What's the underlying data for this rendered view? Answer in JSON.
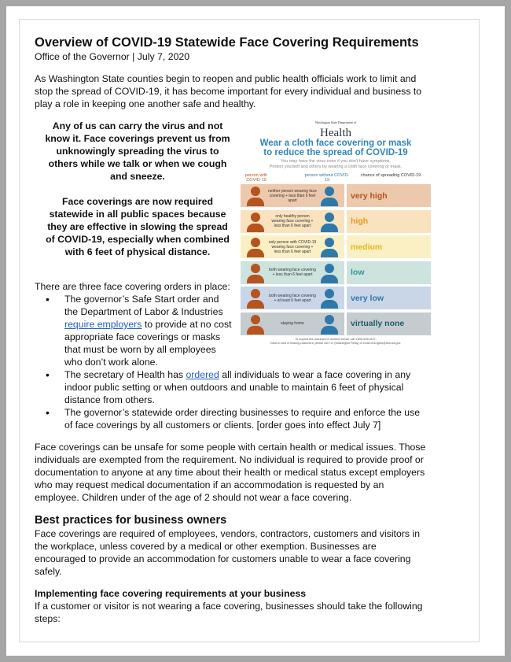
{
  "title": "Overview of COVID-19 Statewide Face Covering Requirements",
  "subtitle": "Office of the Governor | July 7, 2020",
  "intro": "As Washington State counties begin to reopen and public health officials work to limit and stop the spread of COVID-19, it has become important for every individual and business to play a role in keeping one another safe and healthy.",
  "callout1": "Any of us can carry the virus and not know it. Face coverings prevent us from unknowingly spreading the virus to others while we talk or when we cough and sneeze.",
  "callout2": "Face coverings are now required statewide in all public spaces because they are effective in slowing the spread of COVID-19, especially when combined with 6 feet of physical distance.",
  "orders_intro": "There are three face covering orders in place:",
  "bullets": [
    {
      "pre": "The governor’s Safe Start order and the Department of Labor & Industries ",
      "link": "require employers",
      "post": " to provide at no cost appropriate face coverings or masks that must be worn by all employees who don’t work alone."
    },
    {
      "pre": "The secretary of Health has ",
      "link": "ordered",
      "post": " all individuals to wear a face covering in any indoor public setting or when outdoors and unable to maintain 6 feet of physical distance from others."
    },
    {
      "text": "The governor’s statewide order directing businesses to require and enforce the use of face coverings by all customers or clients. [order goes into effect July 7]"
    }
  ],
  "exemptions": "Face coverings can be unsafe for some people with certain health or medical issues. Those individuals are exempted from the requirement. No individual is required to provide proof or documentation to anyone at any time about their health or medical status except employers who may request medical documentation if an accommodation is requested by an employee. Children under of the age of 2 should not wear a face covering.",
  "best_heading": "Best practices for business owners",
  "best_text": "Face coverings are required of employees, vendors, contractors, customers and visitors in the workplace, unless covered by a medical or other exemption. Businesses are encouraged to provide an accommodation for customers unable to wear a face covering safely.",
  "impl_heading": "Implementing face covering requirements at your business",
  "impl_text": "If a customer or visitor is not wearing a face covering, businesses should take the following steps:",
  "infographic": {
    "logo_small": "Washington State Department of",
    "logo": "Health",
    "title1": "Wear a cloth face covering or mask",
    "title2": "to reduce the spread of COVID-19",
    "tag1": "You may have the virus even if you don't have symptoms.",
    "tag2": "Protect yourself and others by wearing a cloth face covering or mask.",
    "col1": "person with COVID-19",
    "col2": "person without COVID-19",
    "col3": "chance of spreading COVID-19",
    "rows": [
      {
        "caption": "neither person wearing face covering + less than 6 feet apart",
        "level": "very high",
        "bg": "#ecc9ac",
        "color": "#b5541f"
      },
      {
        "caption": "only healthy person wearing face covering + less than 6 feet apart",
        "level": "high",
        "bg": "#f9e2bd",
        "color": "#e89a1c"
      },
      {
        "caption": "only person with COVID-19 wearing face covering + less than 6 feet apart",
        "level": "medium",
        "bg": "#fbefc4",
        "color": "#e6b617"
      },
      {
        "caption": "both wearing face covering + less than 6 feet apart",
        "level": "low",
        "bg": "#cde3de",
        "color": "#2f9a96"
      },
      {
        "caption": "both wearing face covering + at least 6 feet apart",
        "level": "very low",
        "bg": "#c9d6e8",
        "color": "#2e79aa"
      },
      {
        "caption": "staying home",
        "level": "virtually none",
        "bg": "#c4ccd0",
        "color": "#215e6b"
      }
    ],
    "footer1": "To request this document in another format, call 1-800-525-0127.",
    "footer2": "Deaf or hard of hearing customers, please call 711 (Washington Relay) or email civil.rights@doh.wa.gov."
  }
}
